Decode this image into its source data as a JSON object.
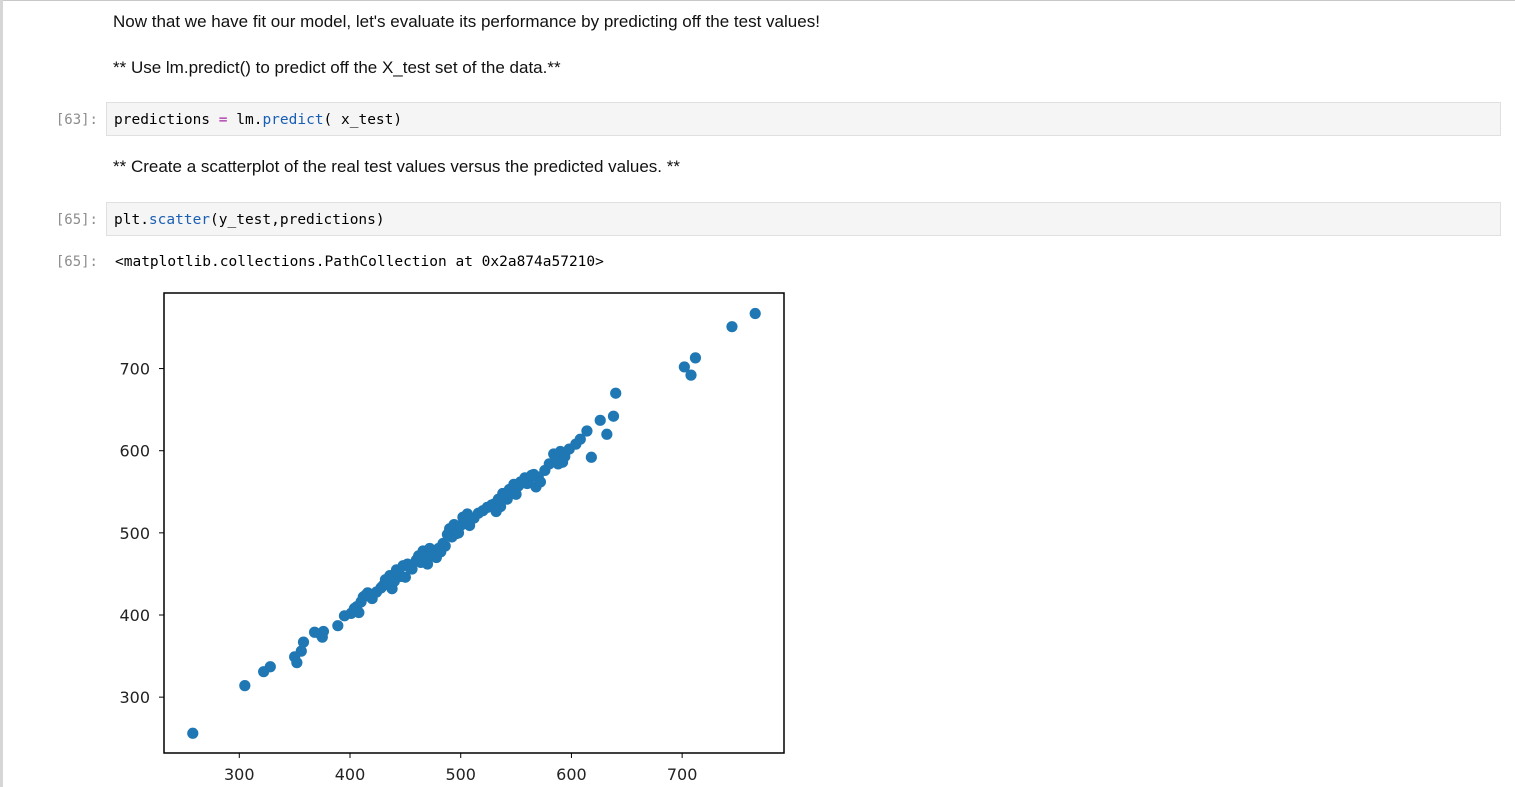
{
  "notebook": {
    "markdown_1": "Now that we have fit our model, let's evaluate its performance by predicting off the test values!",
    "markdown_2": "** Use lm.predict() to predict off the X_test set of the data.**",
    "cell_63": {
      "prompt": "[63]:",
      "code_var": "predictions",
      "code_op": "=",
      "code_obj": "lm.",
      "code_fn": "predict",
      "code_args": "( x_test)"
    },
    "markdown_3": "** Create a scatterplot of the real test values versus the predicted values. **",
    "cell_65": {
      "prompt": "[65]:",
      "code_obj": "plt.",
      "code_fn": "scatter",
      "code_args": "(y_test,predictions)",
      "output_prompt": "[65]:",
      "output_text": "<matplotlib.collections.PathCollection at 0x2a874a57210>"
    }
  },
  "colors": {
    "point": "#1f77b4",
    "axes": "#000000"
  },
  "chart_data": {
    "type": "scatter",
    "title": "",
    "xlabel": "",
    "ylabel": "",
    "xlim": [
      232,
      792
    ],
    "ylim": [
      232,
      792
    ],
    "xticks": [
      300,
      400,
      500,
      600,
      700
    ],
    "yticks": [
      300,
      400,
      500,
      600,
      700
    ],
    "grid": false,
    "x": [
      258,
      305,
      322,
      328,
      350,
      352,
      356,
      358,
      368,
      373,
      375,
      376,
      389,
      395,
      401,
      404,
      406,
      408,
      410,
      412,
      414,
      416,
      420,
      424,
      428,
      430,
      432,
      434,
      436,
      438,
      440,
      442,
      444,
      446,
      448,
      450,
      452,
      454,
      456,
      460,
      462,
      464,
      466,
      468,
      470,
      472,
      474,
      476,
      478,
      480,
      482,
      484,
      486,
      488,
      490,
      492,
      494,
      496,
      498,
      500,
      502,
      504,
      506,
      508,
      512,
      516,
      520,
      524,
      528,
      530,
      532,
      534,
      536,
      538,
      540,
      542,
      544,
      546,
      548,
      550,
      552,
      554,
      556,
      558,
      560,
      562,
      564,
      566,
      568,
      570,
      572,
      576,
      580,
      584,
      586,
      588,
      590,
      592,
      594,
      598,
      604,
      608,
      614,
      618,
      626,
      632,
      638,
      640,
      702,
      708,
      712,
      745,
      766
    ],
    "y": [
      256,
      314,
      331,
      337,
      349,
      342,
      356,
      367,
      379,
      377,
      373,
      380,
      387,
      399,
      402,
      408,
      410,
      403,
      416,
      422,
      424,
      427,
      420,
      428,
      433,
      436,
      443,
      438,
      448,
      432,
      441,
      455,
      452,
      447,
      460,
      446,
      462,
      458,
      456,
      467,
      472,
      464,
      478,
      470,
      462,
      481,
      476,
      472,
      470,
      481,
      477,
      487,
      484,
      498,
      505,
      495,
      510,
      499,
      500,
      509,
      519,
      518,
      523,
      509,
      518,
      524,
      527,
      531,
      534,
      535,
      526,
      541,
      532,
      548,
      545,
      541,
      553,
      548,
      559,
      547,
      557,
      562,
      561,
      567,
      560,
      566,
      570,
      571,
      556,
      568,
      562,
      576,
      584,
      596,
      590,
      584,
      599,
      586,
      593,
      602,
      608,
      614,
      624,
      592,
      637,
      620,
      642,
      670,
      702,
      692,
      713,
      751,
      767
    ]
  }
}
